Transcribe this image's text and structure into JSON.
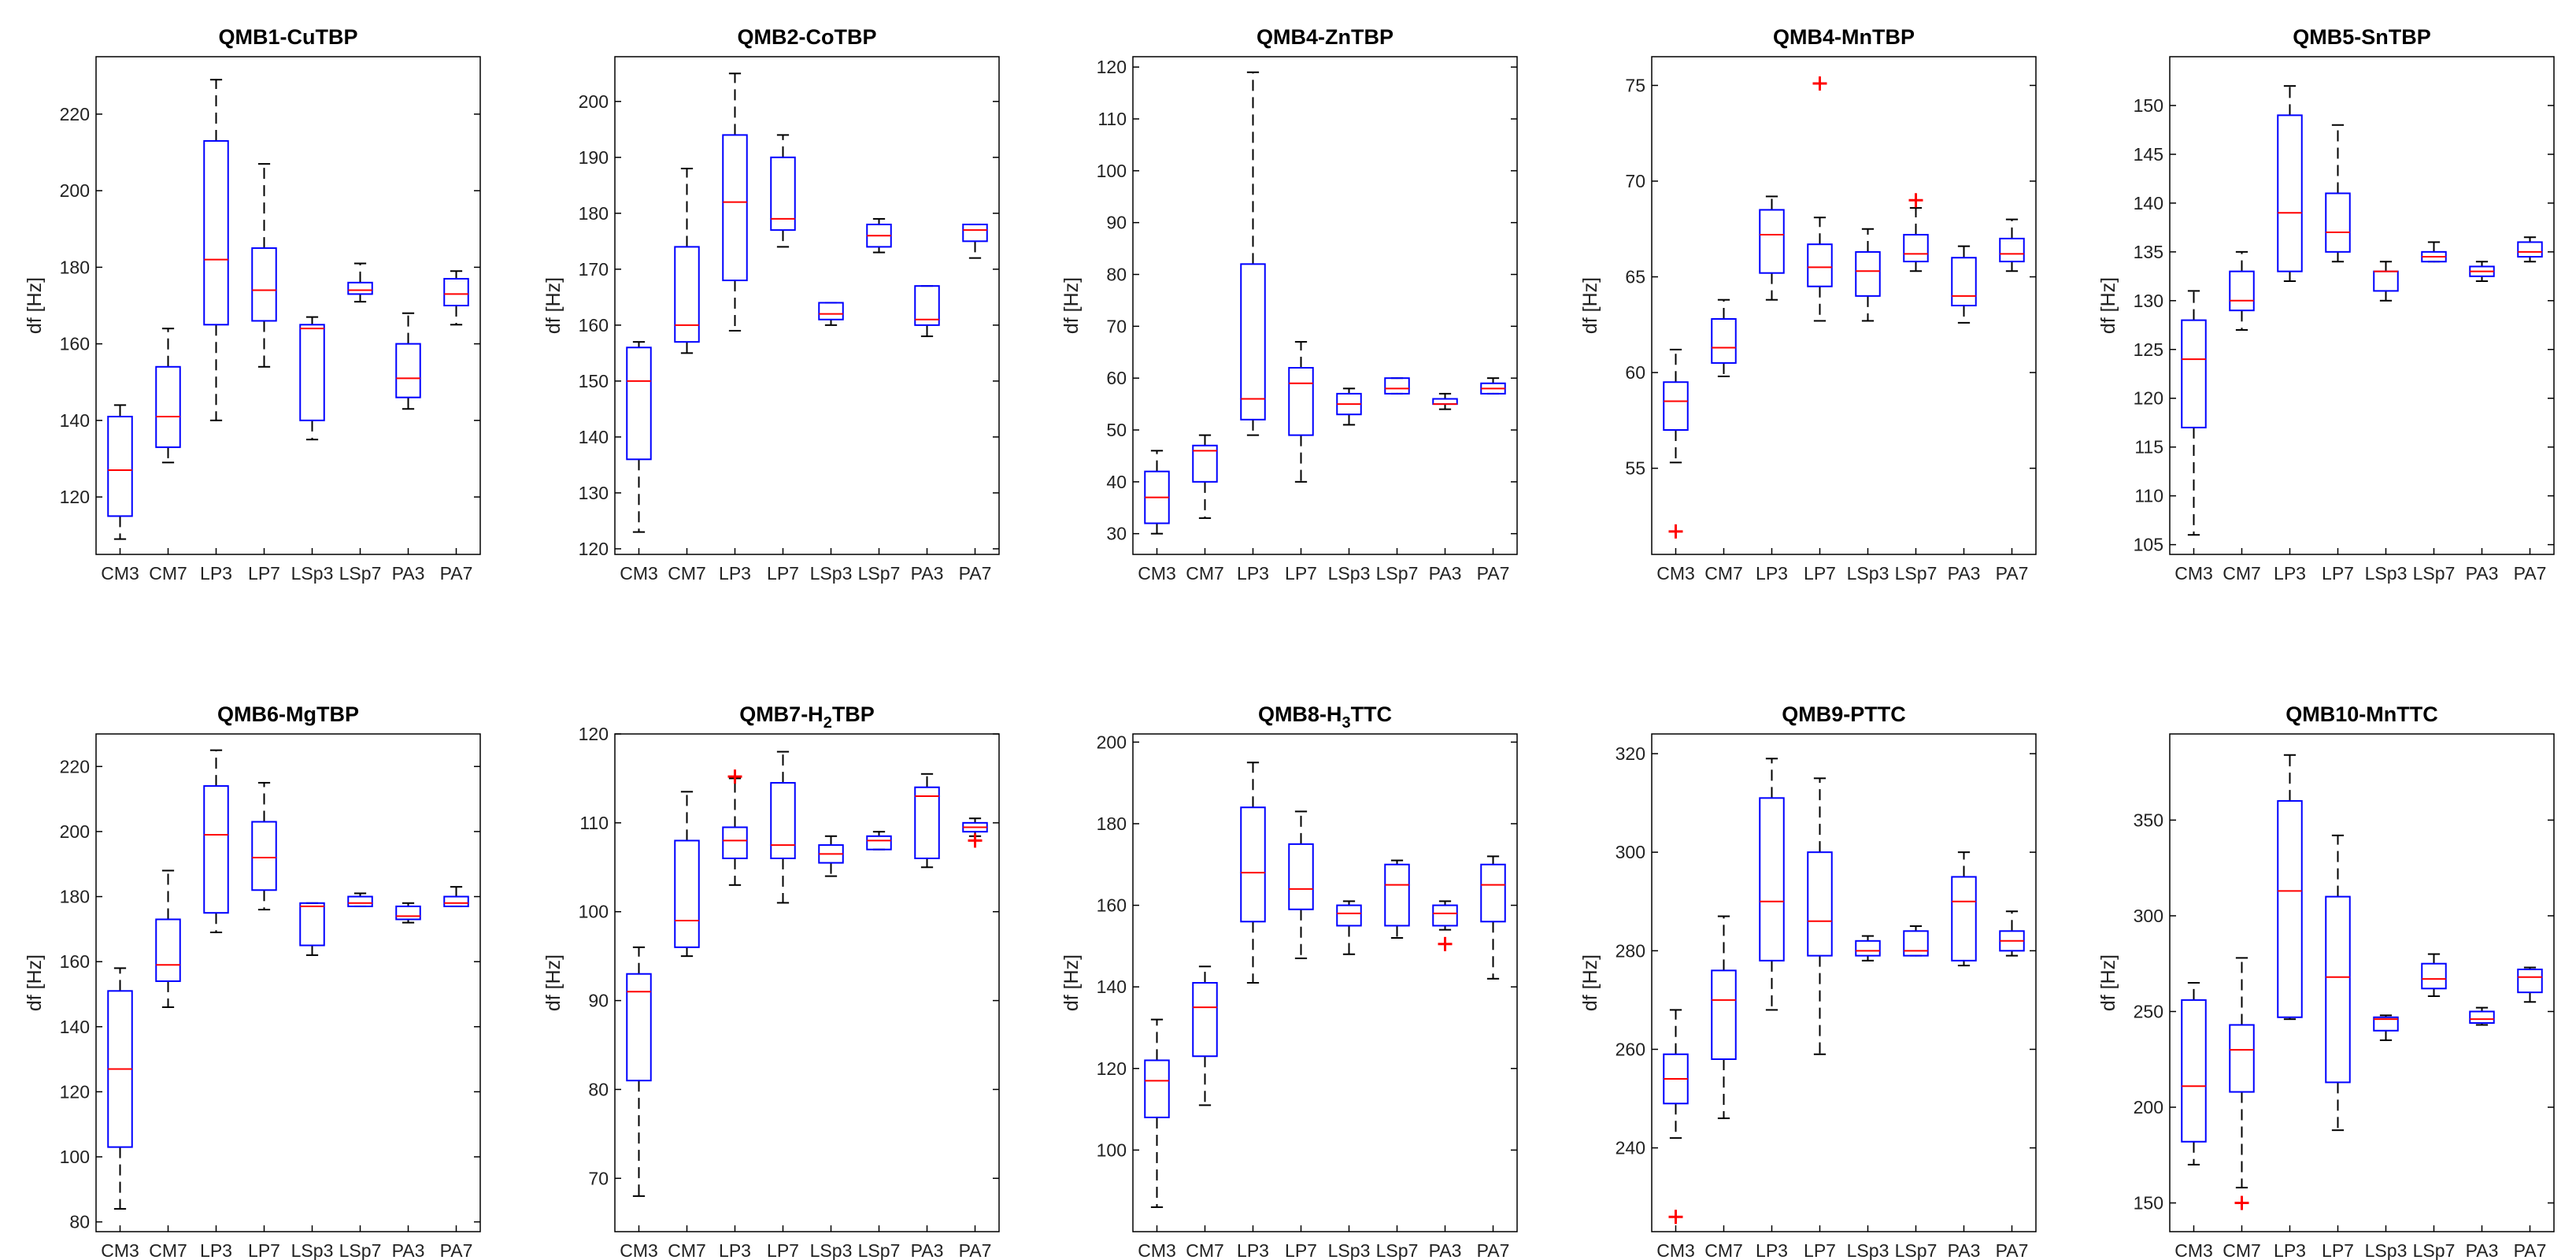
{
  "chart_data": [
    {
      "type": "box",
      "title": "QMB1-CuTBP",
      "ylabel": "df [Hz]",
      "categories": [
        "CM3",
        "CM7",
        "LP3",
        "LP7",
        "LSp3",
        "LSp7",
        "PA3",
        "PA7"
      ],
      "ylim": [
        105,
        235
      ],
      "yticks": [
        120,
        140,
        160,
        180,
        200,
        220
      ],
      "boxes": [
        {
          "wlo": 109,
          "q1": 115,
          "med": 127,
          "q3": 141,
          "whi": 144
        },
        {
          "wlo": 129,
          "q1": 133,
          "med": 141,
          "q3": 154,
          "whi": 164
        },
        {
          "wlo": 140,
          "q1": 165,
          "med": 182,
          "q3": 213,
          "whi": 229
        },
        {
          "wlo": 154,
          "q1": 166,
          "med": 174,
          "q3": 185,
          "whi": 207
        },
        {
          "wlo": 135,
          "q1": 140,
          "med": 164,
          "q3": 165,
          "whi": 167
        },
        {
          "wlo": 171,
          "q1": 173,
          "med": 174,
          "q3": 176,
          "whi": 181
        },
        {
          "wlo": 143,
          "q1": 146,
          "med": 151,
          "q3": 160,
          "whi": 168
        },
        {
          "wlo": 165,
          "q1": 170,
          "med": 173,
          "q3": 177,
          "whi": 179
        }
      ],
      "outliers": []
    },
    {
      "type": "box",
      "title": "QMB2-CoTBP",
      "ylabel": "df [Hz]",
      "categories": [
        "CM3",
        "CM7",
        "LP3",
        "LP7",
        "LSp3",
        "LSp7",
        "PA3",
        "PA7"
      ],
      "ylim": [
        119,
        208
      ],
      "yticks": [
        120,
        130,
        140,
        150,
        160,
        170,
        180,
        190,
        200
      ],
      "boxes": [
        {
          "wlo": 123,
          "q1": 136,
          "med": 150,
          "q3": 156,
          "whi": 157
        },
        {
          "wlo": 155,
          "q1": 157,
          "med": 160,
          "q3": 174,
          "whi": 188
        },
        {
          "wlo": 159,
          "q1": 168,
          "med": 182,
          "q3": 194,
          "whi": 205
        },
        {
          "wlo": 174,
          "q1": 177,
          "med": 179,
          "q3": 190,
          "whi": 194
        },
        {
          "wlo": 160,
          "q1": 161,
          "med": 162,
          "q3": 164,
          "whi": 164
        },
        {
          "wlo": 173,
          "q1": 174,
          "med": 176,
          "q3": 178,
          "whi": 179
        },
        {
          "wlo": 158,
          "q1": 160,
          "med": 161,
          "q3": 167,
          "whi": 167
        },
        {
          "wlo": 172,
          "q1": 175,
          "med": 177,
          "q3": 178,
          "whi": 178
        }
      ],
      "outliers": []
    },
    {
      "type": "box",
      "title": "QMB4-ZnTBP",
      "ylabel": "df [Hz]",
      "categories": [
        "CM3",
        "CM7",
        "LP3",
        "LP7",
        "LSp3",
        "LSp7",
        "PA3",
        "PA7"
      ],
      "ylim": [
        26,
        122
      ],
      "yticks": [
        30,
        40,
        50,
        60,
        70,
        80,
        90,
        100,
        110,
        120
      ],
      "boxes": [
        {
          "wlo": 30,
          "q1": 32,
          "med": 37,
          "q3": 42,
          "whi": 46
        },
        {
          "wlo": 33,
          "q1": 40,
          "med": 46,
          "q3": 47,
          "whi": 49
        },
        {
          "wlo": 49,
          "q1": 52,
          "med": 56,
          "q3": 82,
          "whi": 119
        },
        {
          "wlo": 40,
          "q1": 49,
          "med": 59,
          "q3": 62,
          "whi": 67
        },
        {
          "wlo": 51,
          "q1": 53,
          "med": 55,
          "q3": 57,
          "whi": 58
        },
        {
          "wlo": 57,
          "q1": 57,
          "med": 58,
          "q3": 60,
          "whi": 60
        },
        {
          "wlo": 54,
          "q1": 55,
          "med": 55,
          "q3": 56,
          "whi": 57
        },
        {
          "wlo": 57,
          "q1": 57,
          "med": 58,
          "q3": 59,
          "whi": 60
        }
      ],
      "outliers": []
    },
    {
      "type": "box",
      "title": "QMB4-MnTBP",
      "ylabel": "df [Hz]",
      "categories": [
        "CM3",
        "CM7",
        "LP3",
        "LP7",
        "LSp3",
        "LSp7",
        "PA3",
        "PA7"
      ],
      "ylim": [
        50.5,
        76.5
      ],
      "yticks": [
        55,
        60,
        65,
        70,
        75
      ],
      "boxes": [
        {
          "wlo": 55.3,
          "q1": 57,
          "med": 58.5,
          "q3": 59.5,
          "whi": 61.2
        },
        {
          "wlo": 59.8,
          "q1": 60.5,
          "med": 61.3,
          "q3": 62.8,
          "whi": 63.8
        },
        {
          "wlo": 63.8,
          "q1": 65.2,
          "med": 67.2,
          "q3": 68.5,
          "whi": 69.2
        },
        {
          "wlo": 62.7,
          "q1": 64.5,
          "med": 65.5,
          "q3": 66.7,
          "whi": 68.1
        },
        {
          "wlo": 62.7,
          "q1": 64,
          "med": 65.3,
          "q3": 66.3,
          "whi": 67.5
        },
        {
          "wlo": 65.3,
          "q1": 65.8,
          "med": 66.2,
          "q3": 67.2,
          "whi": 68.6
        },
        {
          "wlo": 62.6,
          "q1": 63.5,
          "med": 64,
          "q3": 66,
          "whi": 66.6
        },
        {
          "wlo": 65.3,
          "q1": 65.8,
          "med": 66.2,
          "q3": 67,
          "whi": 68
        }
      ],
      "outliers": [
        {
          "cat": 0,
          "value": 51.7
        },
        {
          "cat": 3,
          "value": 75.1
        },
        {
          "cat": 5,
          "value": 69.0
        }
      ]
    },
    {
      "type": "box",
      "title": "QMB5-SnTBP",
      "ylabel": "df [Hz]",
      "categories": [
        "CM3",
        "CM7",
        "LP3",
        "LP7",
        "LSp3",
        "LSp7",
        "PA3",
        "PA7"
      ],
      "ylim": [
        104,
        155
      ],
      "yticks": [
        105,
        110,
        115,
        120,
        125,
        130,
        135,
        140,
        145,
        150
      ],
      "boxes": [
        {
          "wlo": 106,
          "q1": 117,
          "med": 124,
          "q3": 128,
          "whi": 131
        },
        {
          "wlo": 127,
          "q1": 129,
          "med": 130,
          "q3": 133,
          "whi": 135
        },
        {
          "wlo": 132,
          "q1": 133,
          "med": 139,
          "q3": 149,
          "whi": 152
        },
        {
          "wlo": 134,
          "q1": 135,
          "med": 137,
          "q3": 141,
          "whi": 148
        },
        {
          "wlo": 130,
          "q1": 131,
          "med": 133,
          "q3": 133,
          "whi": 134
        },
        {
          "wlo": 134,
          "q1": 134,
          "med": 134.5,
          "q3": 135,
          "whi": 136
        },
        {
          "wlo": 132,
          "q1": 132.5,
          "med": 133,
          "q3": 133.5,
          "whi": 134
        },
        {
          "wlo": 134,
          "q1": 134.5,
          "med": 135,
          "q3": 136,
          "whi": 136.5
        }
      ],
      "outliers": []
    },
    {
      "type": "box",
      "title": "QMB6-MgTBP",
      "ylabel": "df [Hz]",
      "categories": [
        "CM3",
        "CM7",
        "LP3",
        "LP7",
        "LSp3",
        "LSp7",
        "PA3",
        "PA7"
      ],
      "ylim": [
        77,
        230
      ],
      "yticks": [
        80,
        100,
        120,
        140,
        160,
        180,
        200,
        220
      ],
      "boxes": [
        {
          "wlo": 84,
          "q1": 103,
          "med": 127,
          "q3": 151,
          "whi": 158
        },
        {
          "wlo": 146,
          "q1": 154,
          "med": 159,
          "q3": 173,
          "whi": 188
        },
        {
          "wlo": 169,
          "q1": 175,
          "med": 199,
          "q3": 214,
          "whi": 225
        },
        {
          "wlo": 176,
          "q1": 182,
          "med": 192,
          "q3": 203,
          "whi": 215
        },
        {
          "wlo": 162,
          "q1": 165,
          "med": 177,
          "q3": 178,
          "whi": 178
        },
        {
          "wlo": 177,
          "q1": 177,
          "med": 178,
          "q3": 180,
          "whi": 181
        },
        {
          "wlo": 172,
          "q1": 173,
          "med": 174,
          "q3": 177,
          "whi": 178
        },
        {
          "wlo": 177,
          "q1": 177,
          "med": 178,
          "q3": 180,
          "whi": 183
        }
      ],
      "outliers": []
    },
    {
      "type": "box",
      "title": "QMB7-H2TBP",
      "ylabel": "df [Hz]",
      "categories": [
        "CM3",
        "CM7",
        "LP3",
        "LP7",
        "LSp3",
        "LSp7",
        "PA3",
        "PA7"
      ],
      "ylim": [
        64,
        120
      ],
      "yticks": [
        70,
        80,
        90,
        100,
        110,
        120
      ],
      "boxes": [
        {
          "wlo": 68,
          "q1": 81,
          "med": 91,
          "q3": 93,
          "whi": 96
        },
        {
          "wlo": 95,
          "q1": 96,
          "med": 99,
          "q3": 108,
          "whi": 113.5
        },
        {
          "wlo": 103,
          "q1": 106,
          "med": 108,
          "q3": 109.5,
          "whi": 115
        },
        {
          "wlo": 101,
          "q1": 106,
          "med": 107.5,
          "q3": 114.5,
          "whi": 118
        },
        {
          "wlo": 104,
          "q1": 105.5,
          "med": 106.5,
          "q3": 107.5,
          "whi": 108.5
        },
        {
          "wlo": 107,
          "q1": 107,
          "med": 108,
          "q3": 108.5,
          "whi": 109
        },
        {
          "wlo": 105,
          "q1": 106,
          "med": 113,
          "q3": 114,
          "whi": 115.5
        },
        {
          "wlo": 108.5,
          "q1": 109,
          "med": 109.5,
          "q3": 110,
          "whi": 110.5
        }
      ],
      "outliers": [
        {
          "cat": 2,
          "value": 115.2
        },
        {
          "cat": 7,
          "value": 108
        }
      ]
    },
    {
      "type": "box",
      "title": "QMB8-H3TTC",
      "ylabel": "df [Hz]",
      "categories": [
        "CM3",
        "CM7",
        "LP3",
        "LP7",
        "LSp3",
        "LSp7",
        "PA3",
        "PA7"
      ],
      "ylim": [
        80,
        202
      ],
      "yticks": [
        100,
        120,
        140,
        160,
        180,
        200
      ],
      "boxes": [
        {
          "wlo": 86,
          "q1": 108,
          "med": 117,
          "q3": 122,
          "whi": 132
        },
        {
          "wlo": 111,
          "q1": 123,
          "med": 135,
          "q3": 141,
          "whi": 145
        },
        {
          "wlo": 141,
          "q1": 156,
          "med": 168,
          "q3": 184,
          "whi": 195
        },
        {
          "wlo": 147,
          "q1": 159,
          "med": 164,
          "q3": 175,
          "whi": 183
        },
        {
          "wlo": 148,
          "q1": 155,
          "med": 158,
          "q3": 160,
          "whi": 161
        },
        {
          "wlo": 152,
          "q1": 155,
          "med": 165,
          "q3": 170,
          "whi": 171
        },
        {
          "wlo": 154,
          "q1": 155,
          "med": 158,
          "q3": 160,
          "whi": 161
        },
        {
          "wlo": 142,
          "q1": 156,
          "med": 165,
          "q3": 170,
          "whi": 172
        }
      ],
      "outliers": [
        {
          "cat": 6,
          "value": 150.5
        }
      ]
    },
    {
      "type": "box",
      "title": "QMB9-PTTC",
      "ylabel": "df [Hz]",
      "categories": [
        "CM3",
        "CM7",
        "LP3",
        "LP7",
        "LSp3",
        "LSp7",
        "PA3",
        "PA7"
      ],
      "ylim": [
        223,
        324
      ],
      "yticks": [
        240,
        260,
        280,
        300,
        320
      ],
      "boxes": [
        {
          "wlo": 242,
          "q1": 249,
          "med": 254,
          "q3": 259,
          "whi": 268
        },
        {
          "wlo": 246,
          "q1": 258,
          "med": 270,
          "q3": 276,
          "whi": 287
        },
        {
          "wlo": 268,
          "q1": 278,
          "med": 290,
          "q3": 311,
          "whi": 319
        },
        {
          "wlo": 259,
          "q1": 279,
          "med": 286,
          "q3": 300,
          "whi": 315
        },
        {
          "wlo": 278,
          "q1": 279,
          "med": 280,
          "q3": 282,
          "whi": 283
        },
        {
          "wlo": 279,
          "q1": 279,
          "med": 280,
          "q3": 284,
          "whi": 285
        },
        {
          "wlo": 277,
          "q1": 278,
          "med": 290,
          "q3": 295,
          "whi": 300
        },
        {
          "wlo": 279,
          "q1": 280,
          "med": 282,
          "q3": 284,
          "whi": 288
        }
      ],
      "outliers": [
        {
          "cat": 0,
          "value": 226
        }
      ]
    },
    {
      "type": "box",
      "title": "QMB10-MnTTC",
      "ylabel": "df [Hz]",
      "categories": [
        "CM3",
        "CM7",
        "LP3",
        "LP7",
        "LSp3",
        "LSp7",
        "PA3",
        "PA7"
      ],
      "ylim": [
        135,
        395
      ],
      "yticks": [
        150,
        200,
        250,
        300,
        350
      ],
      "boxes": [
        {
          "wlo": 170,
          "q1": 182,
          "med": 211,
          "q3": 256,
          "whi": 265
        },
        {
          "wlo": 158,
          "q1": 208,
          "med": 230,
          "q3": 243,
          "whi": 278
        },
        {
          "wlo": 246,
          "q1": 247,
          "med": 313,
          "q3": 360,
          "whi": 384
        },
        {
          "wlo": 188,
          "q1": 213,
          "med": 268,
          "q3": 310,
          "whi": 342
        },
        {
          "wlo": 235,
          "q1": 240,
          "med": 246,
          "q3": 247,
          "whi": 248
        },
        {
          "wlo": 258,
          "q1": 262,
          "med": 267,
          "q3": 275,
          "whi": 280
        },
        {
          "wlo": 243,
          "q1": 244,
          "med": 246,
          "q3": 250,
          "whi": 252
        },
        {
          "wlo": 255,
          "q1": 260,
          "med": 268,
          "q3": 272,
          "whi": 273
        }
      ],
      "outliers": [
        {
          "cat": 1,
          "value": 150
        }
      ]
    }
  ],
  "colors": {
    "box": "#0000ff",
    "median": "#ff0000",
    "outlier": "#ff0000",
    "whisker": "#000000",
    "axis": "#000000"
  }
}
